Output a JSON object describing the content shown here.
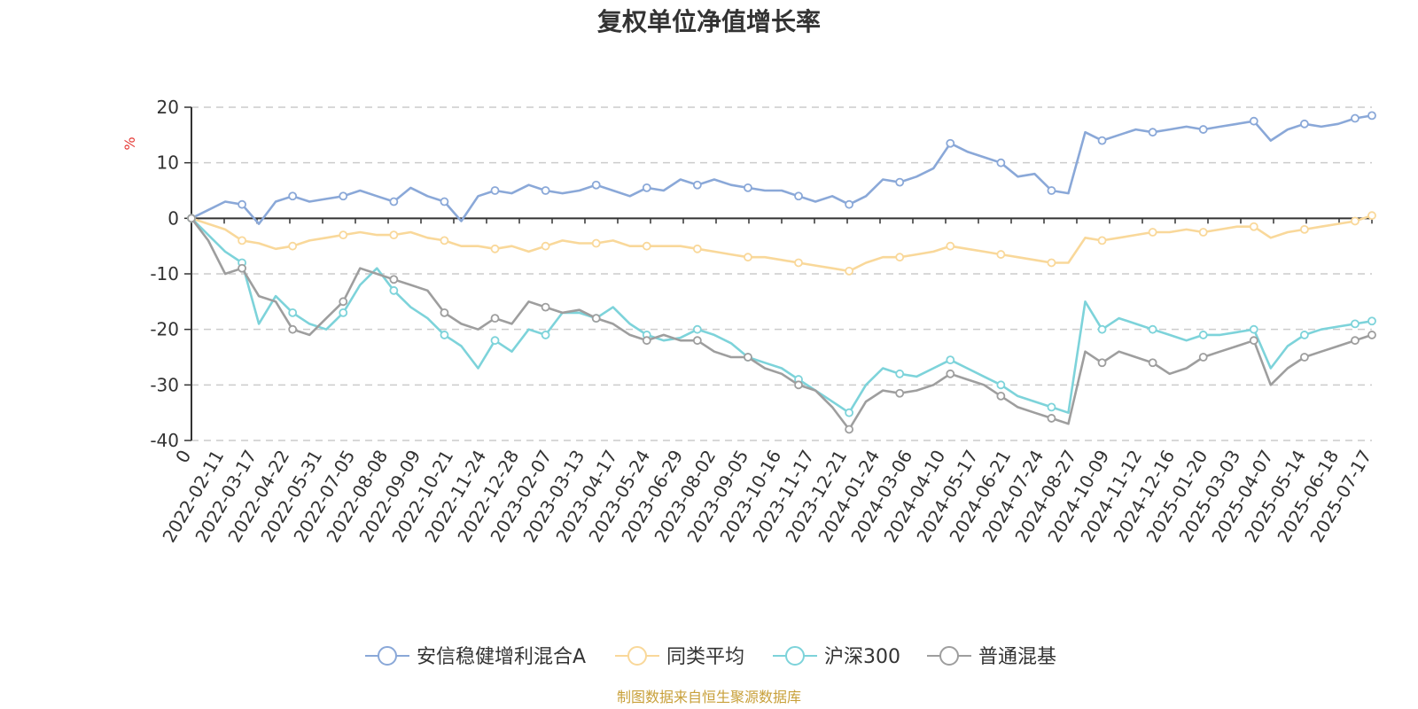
{
  "chart_data": {
    "type": "line",
    "title": "复权单位净值增长率",
    "ylabel": "%",
    "ylim": [
      -40,
      20
    ],
    "yticks": [
      20,
      10,
      0,
      -10,
      -20,
      -30,
      -40
    ],
    "grid": true,
    "legend_position": "bottom",
    "x_tick_labels": [
      "0",
      "2022-02-11",
      "2022-03-17",
      "2022-04-22",
      "2022-05-31",
      "2022-07-05",
      "2022-08-08",
      "2022-09-09",
      "2022-10-21",
      "2022-11-24",
      "2022-12-28",
      "2023-02-07",
      "2023-03-13",
      "2023-04-17",
      "2023-05-24",
      "2023-06-29",
      "2023-08-02",
      "2023-09-05",
      "2023-10-16",
      "2023-11-17",
      "2023-12-21",
      "2024-01-24",
      "2024-03-06",
      "2024-04-10",
      "2024-05-17",
      "2024-06-21",
      "2024-07-24",
      "2024-08-27",
      "2024-10-09",
      "2024-11-12",
      "2024-12-16",
      "2025-01-20",
      "2025-03-03",
      "2025-04-07",
      "2025-05-14",
      "2025-06-18",
      "2025-07-17"
    ],
    "series": [
      {
        "name": "安信稳健增利混合A",
        "color": "#8aa8d8",
        "values": [
          0,
          1.5,
          3,
          2.5,
          -1,
          3,
          4,
          3,
          3.5,
          4,
          5,
          4,
          3,
          5.5,
          4,
          3,
          -0.5,
          4,
          5,
          4.5,
          6,
          5,
          4.5,
          5,
          6,
          5,
          4,
          5.5,
          5,
          7,
          6,
          7,
          6,
          5.5,
          5,
          5,
          4,
          3,
          4,
          2.5,
          4,
          7,
          6.5,
          7.5,
          9,
          13.5,
          12,
          11,
          10,
          7.5,
          8,
          5,
          4.5,
          15.5,
          14,
          15,
          16,
          15.5,
          16,
          16.5,
          16,
          16.5,
          17,
          17.5,
          14,
          16,
          17,
          16.5,
          17,
          18,
          18.5
        ]
      },
      {
        "name": "同类平均",
        "color": "#f9d89a",
        "values": [
          0,
          -1,
          -2,
          -4,
          -4.5,
          -5.5,
          -5,
          -4,
          -3.5,
          -3,
          -2.5,
          -3,
          -3,
          -2.5,
          -3.5,
          -4,
          -5,
          -5,
          -5.5,
          -5,
          -6,
          -5,
          -4,
          -4.5,
          -4.5,
          -4,
          -5,
          -5,
          -5,
          -5,
          -5.5,
          -6,
          -6.5,
          -7,
          -7,
          -7.5,
          -8,
          -8.5,
          -9,
          -9.5,
          -8,
          -7,
          -7,
          -6.5,
          -6,
          -5,
          -5.5,
          -6,
          -6.5,
          -7,
          -7.5,
          -8,
          -8,
          -3.5,
          -4,
          -3.5,
          -3,
          -2.5,
          -2.5,
          -2,
          -2.5,
          -2,
          -1.5,
          -1.5,
          -3.5,
          -2.5,
          -2,
          -1.5,
          -1,
          -0.5,
          0.5
        ]
      },
      {
        "name": "沪深300",
        "color": "#7dd3da",
        "values": [
          0,
          -3,
          -6,
          -8,
          -19,
          -14,
          -17,
          -19,
          -20,
          -17,
          -12,
          -9,
          -13,
          -16,
          -18,
          -21,
          -23,
          -27,
          -22,
          -24,
          -20,
          -21,
          -17,
          -17,
          -18,
          -16,
          -19,
          -21,
          -22,
          -21.5,
          -20,
          -21,
          -22.5,
          -25,
          -26,
          -27,
          -29,
          -31,
          -33,
          -35,
          -30,
          -27,
          -28,
          -28.5,
          -27,
          -25.5,
          -27,
          -28.5,
          -30,
          -32,
          -33,
          -34,
          -35,
          -15,
          -20,
          -18,
          -19,
          -20,
          -21,
          -22,
          -21,
          -21,
          -20.5,
          -20,
          -27,
          -23,
          -21,
          -20,
          -19.5,
          -19,
          -18.5
        ]
      },
      {
        "name": "普通混基",
        "color": "#9e9e9e",
        "values": [
          0,
          -4,
          -10,
          -9,
          -14,
          -15,
          -20,
          -21,
          -18,
          -15,
          -9,
          -10,
          -11,
          -12,
          -13,
          -17,
          -19,
          -20,
          -18,
          -19,
          -15,
          -16,
          -17,
          -16.5,
          -18,
          -19,
          -21,
          -22,
          -21,
          -22,
          -22,
          -24,
          -25,
          -25,
          -27,
          -28,
          -30,
          -31,
          -34,
          -38,
          -33,
          -31,
          -31.5,
          -31,
          -30,
          -28,
          -29,
          -30,
          -32,
          -34,
          -35,
          -36,
          -37,
          -24,
          -26,
          -24,
          -25,
          -26,
          -28,
          -27,
          -25,
          -24,
          -23,
          -22,
          -30,
          -27,
          -25,
          -24,
          -23,
          -22,
          -21
        ]
      }
    ]
  },
  "legend_items": [
    "安信稳健增利混合A",
    "同类平均",
    "沪深300",
    "普通混基"
  ],
  "source_note": "制图数据来自恒生聚源数据库"
}
